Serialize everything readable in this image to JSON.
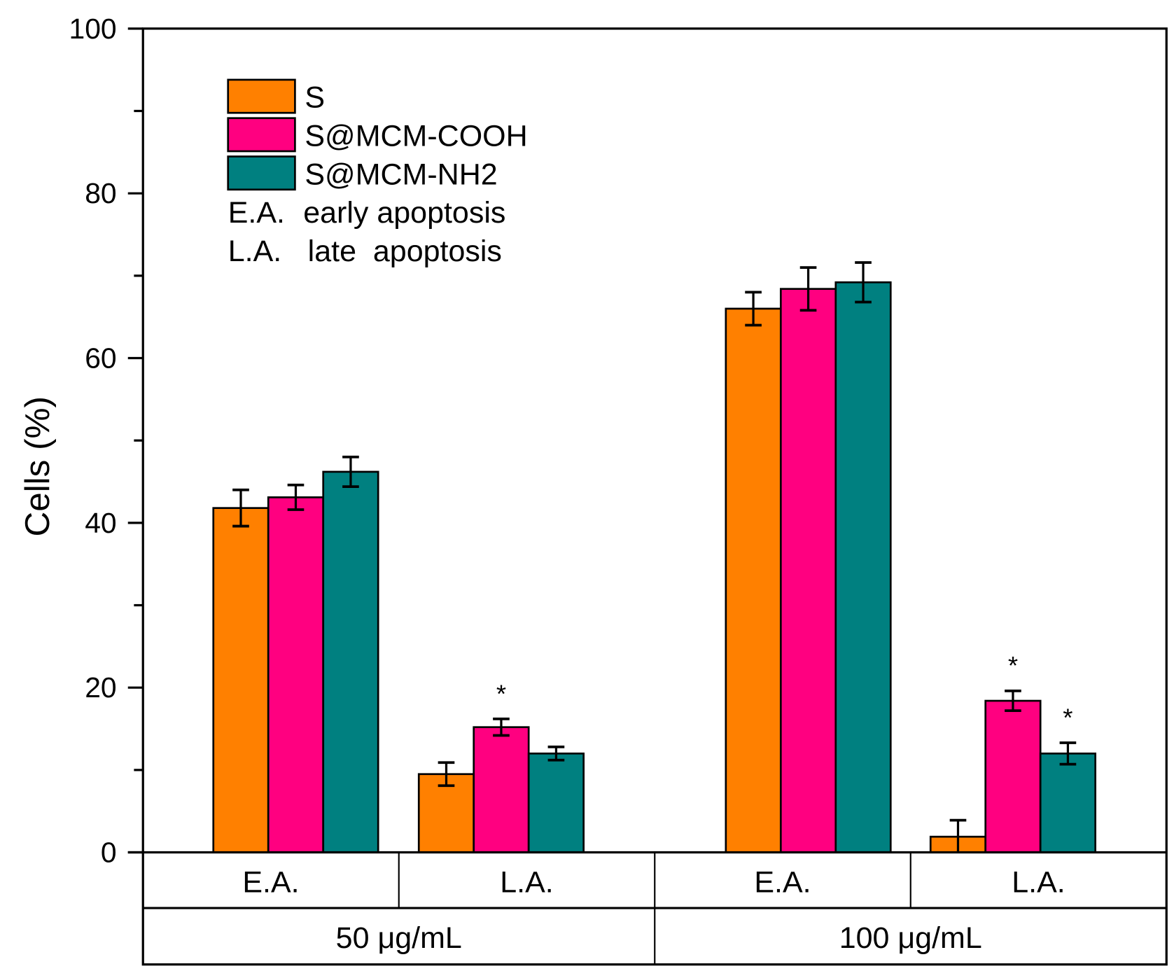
{
  "chart_data": {
    "type": "bar",
    "title": "",
    "xlabel": "",
    "ylabel": "Cells (%)",
    "ylim": [
      0,
      100
    ],
    "yticks": [
      "0",
      "20",
      "40",
      "60",
      "80",
      "100"
    ],
    "categories": [
      "E.A.",
      "L.A.",
      "E.A.",
      "L.A."
    ],
    "groups": [
      "50 μg/mL",
      "100 μg/mL"
    ],
    "series": [
      {
        "name": "S",
        "color": "#FF8000",
        "values": [
          41.8,
          9.5,
          66.0,
          1.9
        ],
        "errors": [
          2.2,
          1.4,
          2.0,
          2.0
        ]
      },
      {
        "name": "S@MCM-COOH",
        "color": "#FF0080",
        "values": [
          43.1,
          15.2,
          68.4,
          18.4
        ],
        "errors": [
          1.5,
          1.0,
          2.6,
          1.2
        ]
      },
      {
        "name": "S@MCM-NH2",
        "color": "#008080",
        "values": [
          46.2,
          12.0,
          69.2,
          12.0
        ],
        "errors": [
          1.8,
          0.8,
          2.4,
          1.3
        ]
      }
    ],
    "significance": [
      {
        "category_index": 1,
        "series_index": 1,
        "mark": "*"
      },
      {
        "category_index": 3,
        "series_index": 1,
        "mark": "*"
      },
      {
        "category_index": 3,
        "series_index": 2,
        "mark": "*"
      }
    ],
    "legend": {
      "placement": "top-left",
      "notes": [
        {
          "abbr": "E.A.",
          "text": "early apoptosis"
        },
        {
          "abbr": "L.A.",
          "text": "late  apoptosis"
        }
      ]
    },
    "grid": false
  }
}
